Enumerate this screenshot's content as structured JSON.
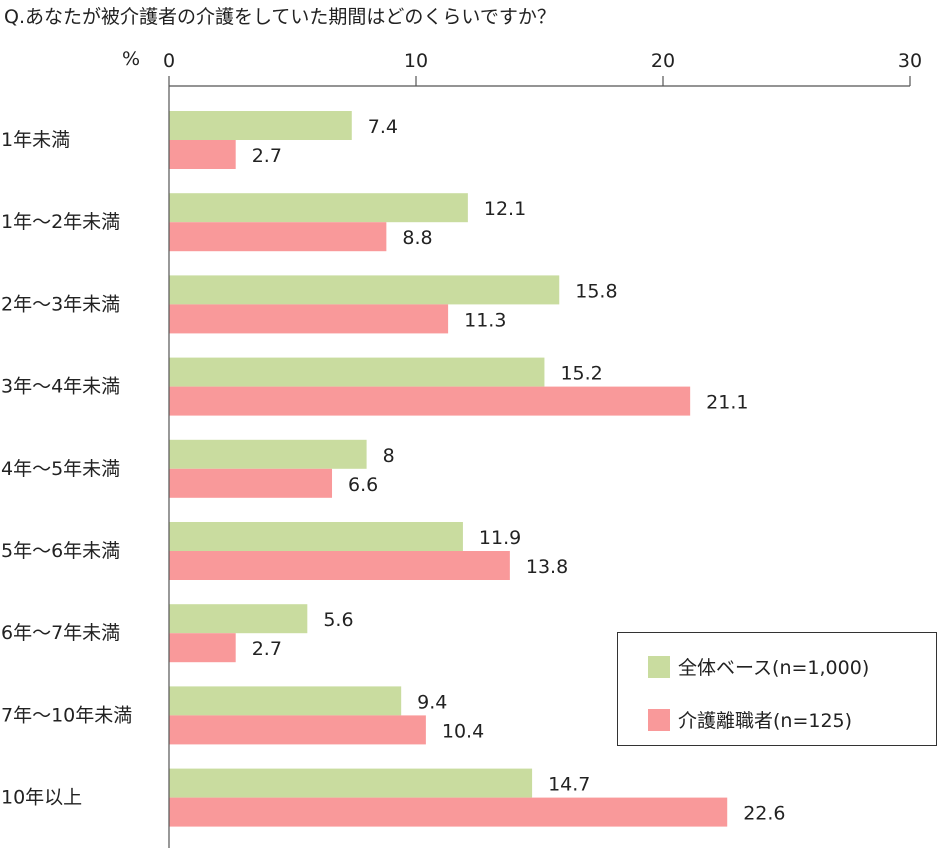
{
  "title": "Q.あなたが被介護者の介護をしていた期間はどのくらいですか？",
  "chart_data": {
    "type": "bar",
    "orientation": "horizontal",
    "unit": "%",
    "categories": [
      "1年未満",
      "1年〜2年未満",
      "2年〜3年未満",
      "3年〜4年未満",
      "4年〜5年未満",
      "5年〜6年未満",
      "6年〜7年未満",
      "7年〜10年未満",
      "10年以上"
    ],
    "series": [
      {
        "name": "全体ベース(n=1,000)",
        "color": "#c9dc9f",
        "values": [
          7.4,
          12.1,
          15.8,
          15.2,
          8,
          11.9,
          5.6,
          9.4,
          14.7
        ]
      },
      {
        "name": "介護離職者(n=125)",
        "color": "#f9999a",
        "values": [
          2.7,
          8.8,
          11.3,
          21.1,
          6.6,
          13.8,
          2.7,
          10.4,
          22.6
        ]
      }
    ],
    "xlim": [
      0,
      30
    ],
    "xticks": [
      0,
      10,
      20,
      30
    ],
    "grid": false,
    "legend_position": "bottom-right"
  }
}
